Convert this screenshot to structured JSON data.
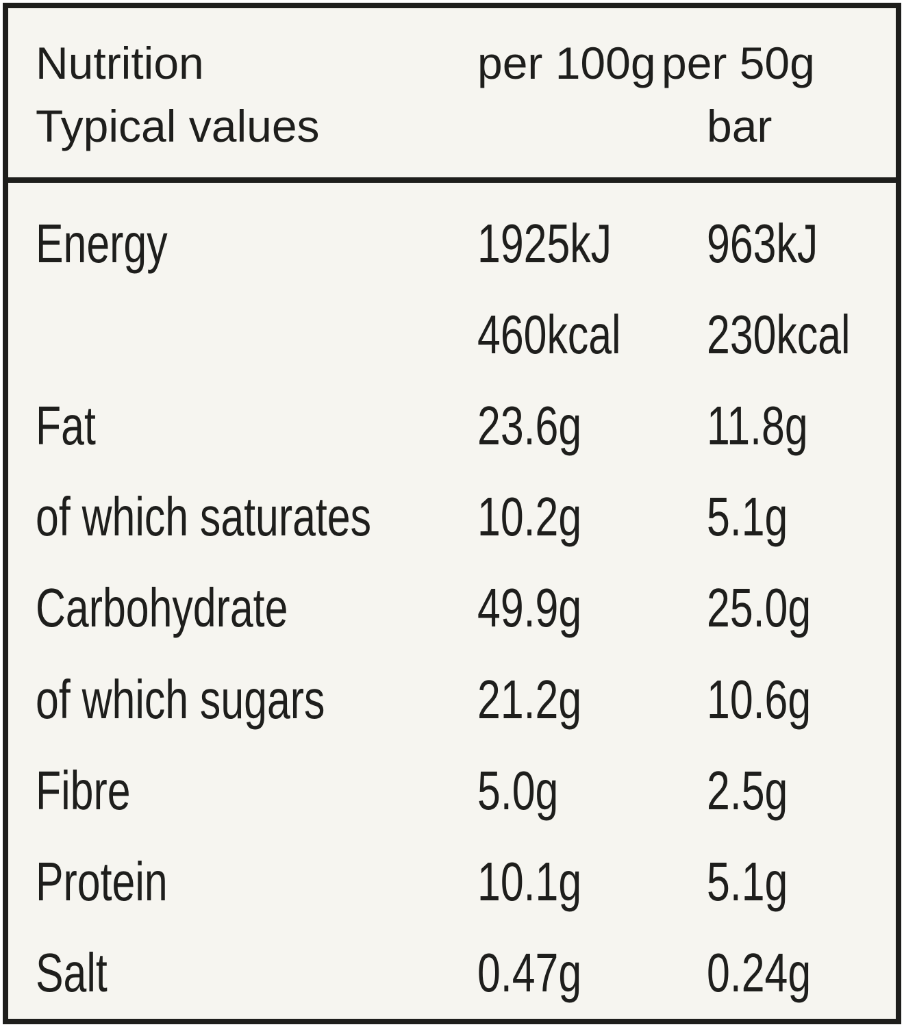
{
  "label": {
    "background_color": "#f6f5f0",
    "ink_color": "#1e1e1c",
    "header": {
      "title_line1": "Nutrition",
      "title_line2": "Typical values",
      "per100_label": "per 100g",
      "per50_line1": "per 50g",
      "per50_line2": "bar"
    },
    "rows": [
      {
        "name": "Energy",
        "per100": "1925kJ",
        "per50": "963kJ"
      },
      {
        "name": "",
        "per100": "460kcal",
        "per50": "230kcal"
      },
      {
        "name": "Fat",
        "per100": "23.6g",
        "per50": "11.8g"
      },
      {
        "name": "of which saturates",
        "per100": "10.2g",
        "per50": "5.1g"
      },
      {
        "name": "Carbohydrate",
        "per100": "49.9g",
        "per50": "25.0g"
      },
      {
        "name": "of which sugars",
        "per100": "21.2g",
        "per50": "10.6g"
      },
      {
        "name": "Fibre",
        "per100": "5.0g",
        "per50": "2.5g"
      },
      {
        "name": "Protein",
        "per100": "10.1g",
        "per50": "5.1g"
      },
      {
        "name": "Salt",
        "per100": "0.47g",
        "per50": "0.24g"
      }
    ]
  }
}
